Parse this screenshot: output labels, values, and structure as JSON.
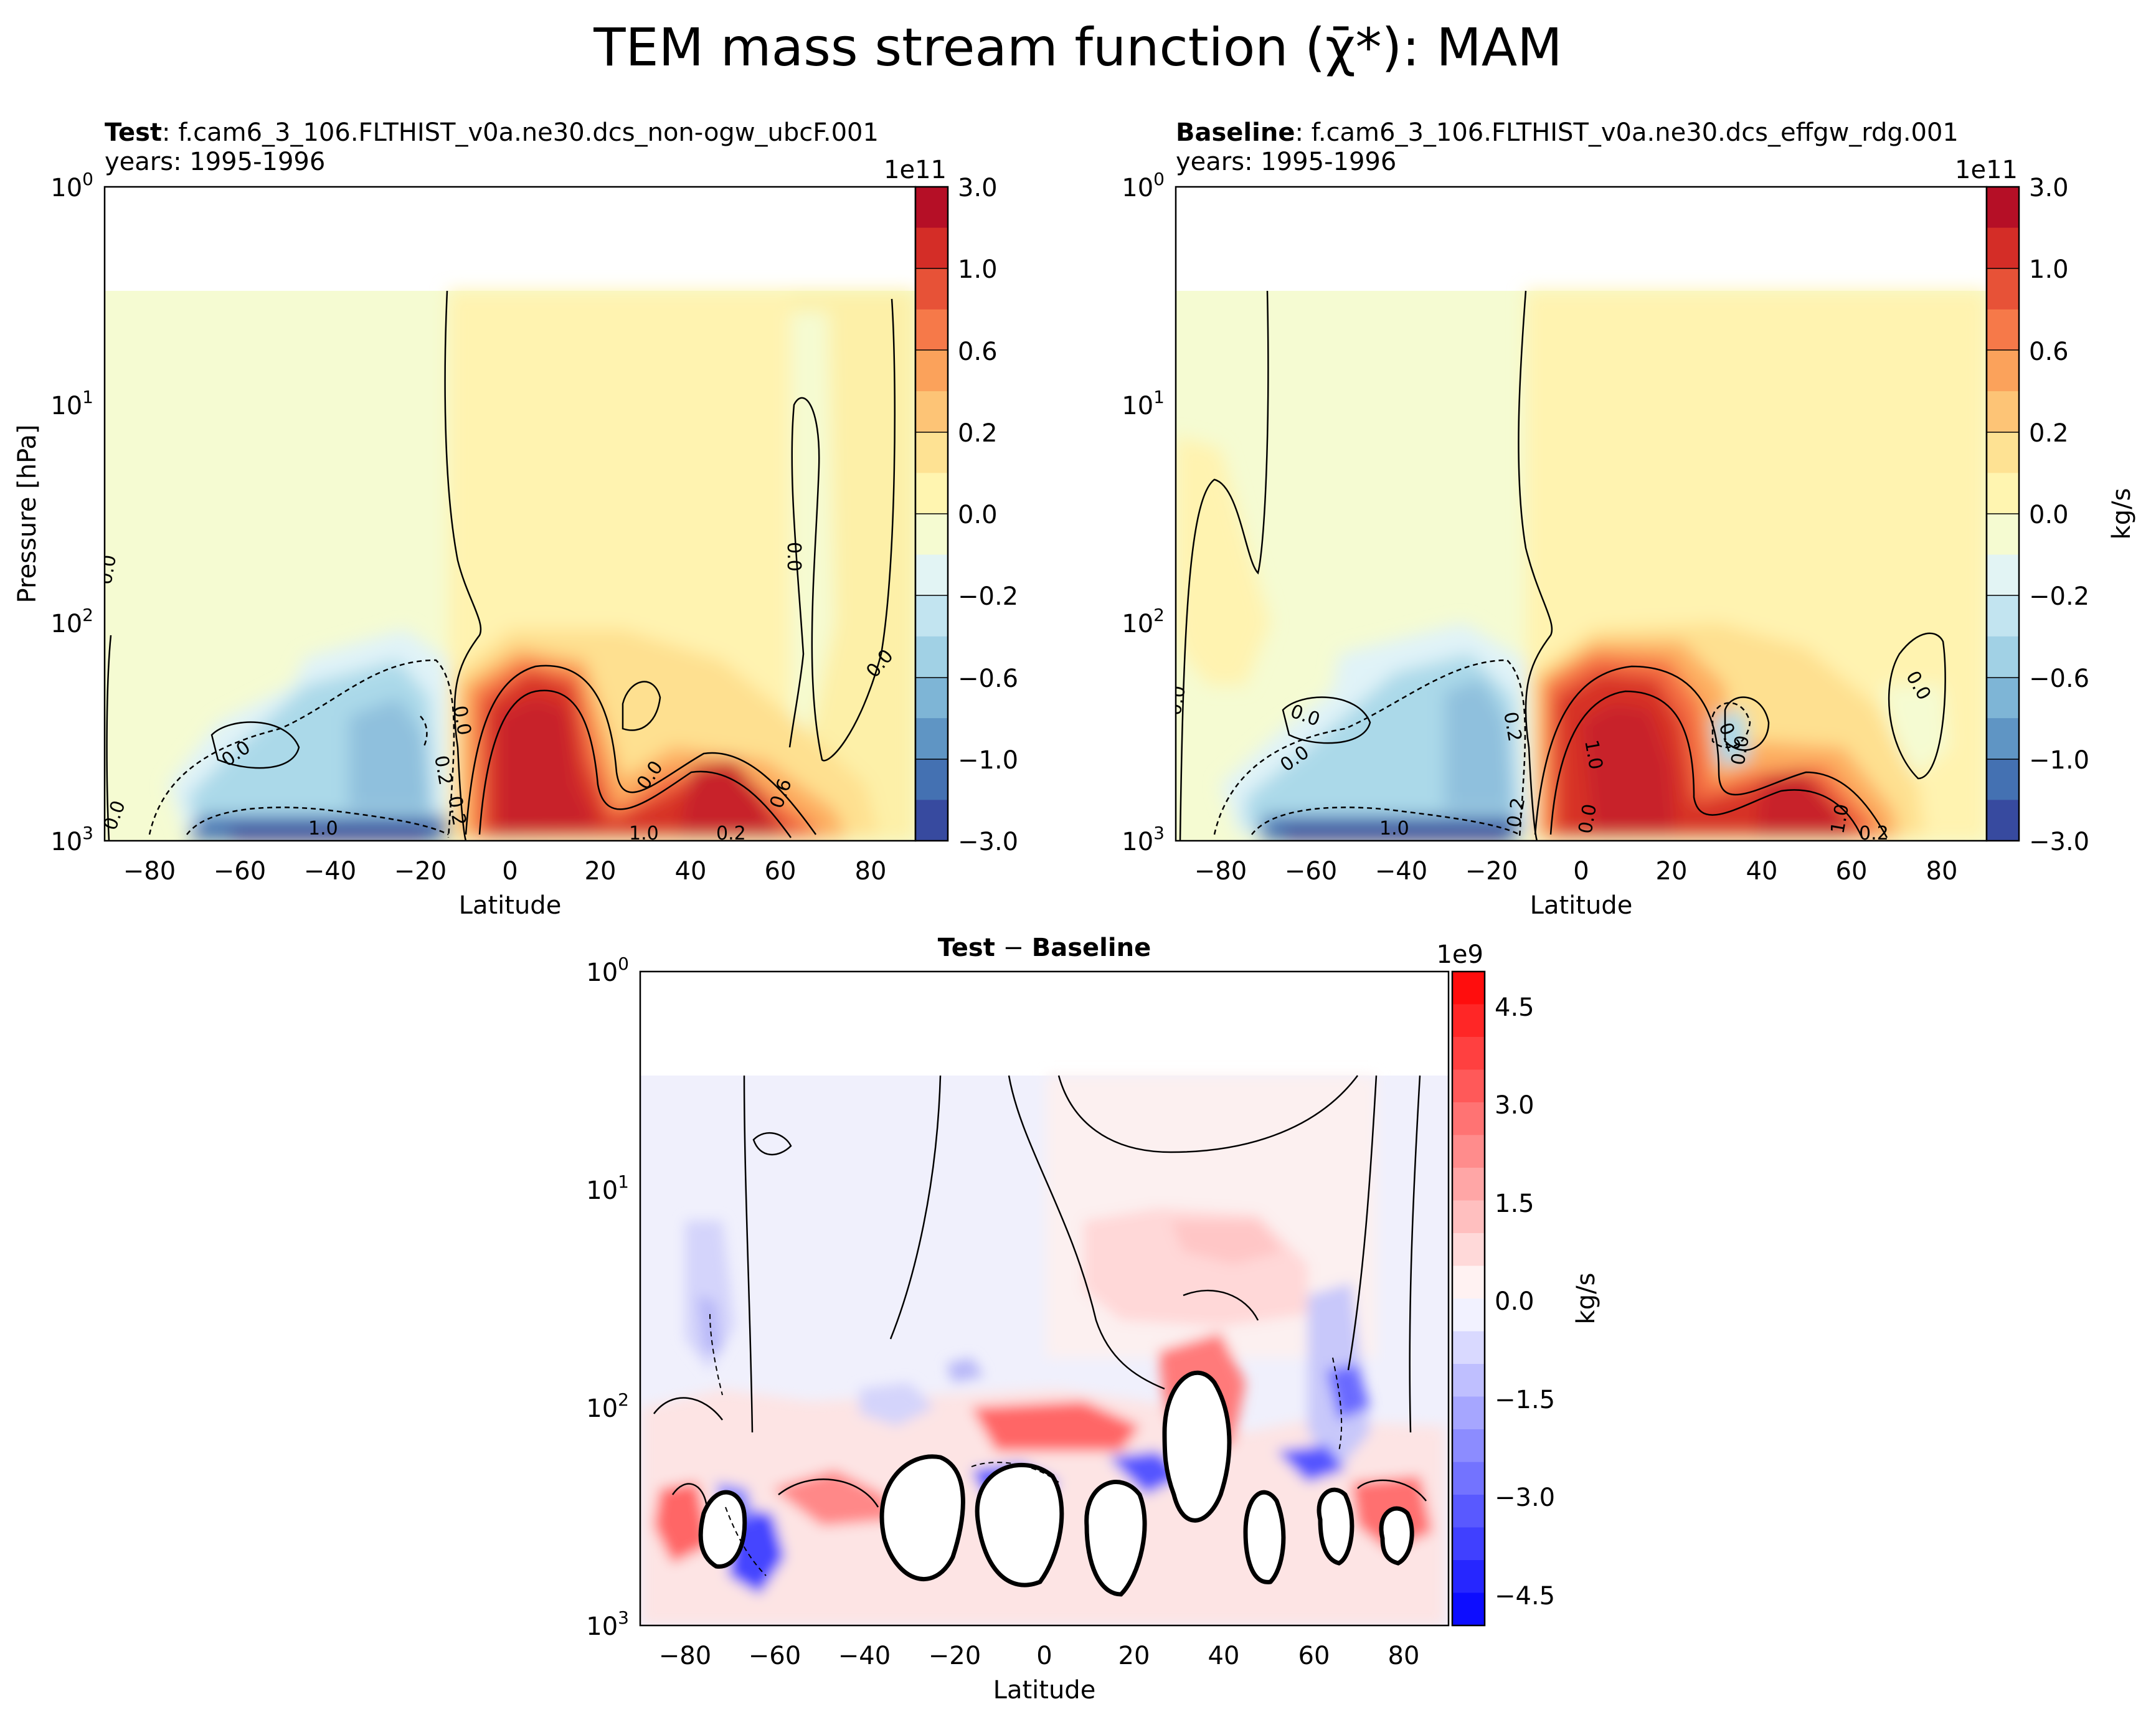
{
  "figure": {
    "title": "TEM mass stream function (χ̄*): MAM"
  },
  "colors": {
    "ref_cmap": [
      "#313695",
      "#4575b4",
      "#74add1",
      "#abd9e9",
      "#e0f3f8",
      "#ffffbf",
      "#fee090",
      "#fdae61",
      "#f46d43",
      "#d73027",
      "#a50026"
    ],
    "diff_cmap": [
      "#0000ff",
      "#ffffff",
      "#ff0000"
    ]
  },
  "chart_data": [
    {
      "type": "heatmap",
      "name": "test",
      "title_bold": "Test",
      "title_rest": ": f.cam6_3_106.FLTHIST_v0a.ne30.dcs_non-ogw_ubcF.001",
      "title_line2": "years: 1995-1996",
      "xlabel": "Latitude",
      "ylabel": "Pressure [hPa]",
      "yscale": "log",
      "xlim": [
        -90,
        90
      ],
      "ylim": [
        1000,
        1
      ],
      "xticks": [
        "−80",
        "−60",
        "−40",
        "−20",
        "0",
        "20",
        "40",
        "60",
        "80"
      ],
      "yticks": [
        "10",
        "10",
        "10",
        "10"
      ],
      "ytick_exp": [
        "3",
        "2",
        "1",
        "0"
      ],
      "colorbar": {
        "offset": "1e11",
        "ticks": [
          "3.0",
          "1.0",
          "0.6",
          "0.2",
          "0.0",
          "−0.2",
          "−0.6",
          "−1.0",
          "−3.0"
        ]
      },
      "contour_labels": [
        "0.0",
        "0.0",
        "0.0",
        "0.0",
        "0.0",
        "0.2",
        "0.2",
        "1.0",
        "0.0",
        "0.6",
        "1.0",
        "0.2",
        "0.0"
      ]
    },
    {
      "type": "heatmap",
      "name": "baseline",
      "title_bold": "Baseline",
      "title_rest": ": f.cam6_3_106.FLTHIST_v0a.ne30.dcs_effgw_rdg.001",
      "title_line2": "years: 1995-1996",
      "xlabel": "Latitude",
      "yscale": "log",
      "xlim": [
        -90,
        90
      ],
      "ylim": [
        1000,
        1
      ],
      "xticks": [
        "−80",
        "−60",
        "−40",
        "−20",
        "0",
        "20",
        "40",
        "60",
        "80"
      ],
      "yticks": [
        "10",
        "10",
        "10",
        "10"
      ],
      "ytick_exp": [
        "3",
        "2",
        "1",
        "0"
      ],
      "colorbar": {
        "label": "kg/s",
        "offset": "1e11",
        "ticks": [
          "3.0",
          "1.0",
          "0.6",
          "0.2",
          "0.0",
          "−0.2",
          "−0.6",
          "−1.0",
          "−3.0"
        ]
      },
      "contour_labels": [
        "0.0",
        "0.0",
        "0.0",
        "0.2",
        "0.2",
        "1.0",
        "0.2",
        "0.0",
        "0.0",
        "1.0",
        "0.0",
        "1.0",
        "0.2"
      ]
    },
    {
      "type": "heatmap",
      "name": "difference",
      "title_bold": "Test",
      "title_rest": " − ",
      "title_bold2": "Baseline",
      "xlabel": "Latitude",
      "yscale": "log",
      "xlim": [
        -90,
        90
      ],
      "ylim": [
        1000,
        1
      ],
      "xticks": [
        "−80",
        "−60",
        "−40",
        "−20",
        "0",
        "20",
        "40",
        "60",
        "80"
      ],
      "yticks": [
        "10",
        "10",
        "10",
        "10"
      ],
      "ytick_exp": [
        "3",
        "2",
        "1",
        "0"
      ],
      "colorbar": {
        "label": "kg/s",
        "offset": "1e9",
        "ticks": [
          "4.5",
          "3.0",
          "1.5",
          "0.0",
          "−1.5",
          "−3.0",
          "−4.5"
        ]
      }
    }
  ]
}
